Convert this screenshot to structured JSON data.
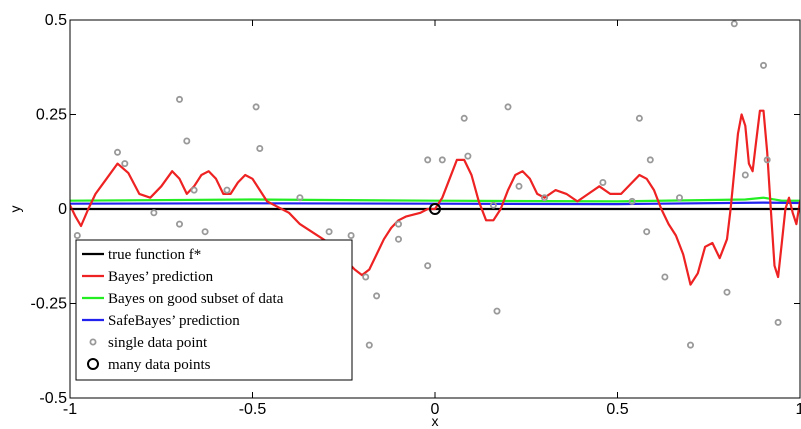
{
  "chart_data": {
    "type": "line",
    "xlabel": "x",
    "ylabel": "y",
    "xlim": [
      -1,
      1
    ],
    "ylim": [
      -0.5,
      0.5
    ],
    "xticks": [
      -1,
      -0.5,
      0,
      0.5,
      1
    ],
    "xtick_labels": [
      "-1",
      "-0.5",
      "0",
      "0.5",
      "1"
    ],
    "yticks": [
      -0.5,
      -0.25,
      0,
      0.25,
      0.5
    ],
    "ytick_labels": [
      "-0.5",
      "-0.25",
      "0",
      "0.25",
      "0.5"
    ],
    "grid": false,
    "legend_position": "bottom-left",
    "colors": {
      "true_function": "#000000",
      "bayes": "#ee2222",
      "bayes_good": "#22ee22",
      "safebayes": "#2222ee",
      "points": "#999999",
      "many_points": "#000000"
    },
    "legend": [
      {
        "label": "true function f*",
        "kind": "line",
        "color": "#000000"
      },
      {
        "label": "Bayes’ prediction",
        "kind": "line",
        "color": "#ee2222"
      },
      {
        "label": "Bayes on good subset of data",
        "kind": "line",
        "color": "#22ee22"
      },
      {
        "label": "SafeBayes’ prediction",
        "kind": "line",
        "color": "#2222ee"
      },
      {
        "label": "single data point",
        "kind": "small-circle",
        "color": "#999999"
      },
      {
        "label": "many data points",
        "kind": "big-circle",
        "color": "#000000"
      }
    ],
    "series": [
      {
        "key": "true_function",
        "x": [
          -1,
          1
        ],
        "y": [
          0,
          0
        ]
      },
      {
        "key": "bayes_good",
        "x": [
          -1,
          -0.5,
          0,
          0.5,
          0.85,
          0.9,
          0.95,
          1
        ],
        "y": [
          0.022,
          0.025,
          0.022,
          0.02,
          0.025,
          0.03,
          0.022,
          0.022
        ]
      },
      {
        "key": "safebayes",
        "x": [
          -1,
          -0.5,
          0,
          0.5,
          0.9,
          1
        ],
        "y": [
          0.014,
          0.015,
          0.014,
          0.013,
          0.017,
          0.016
        ]
      },
      {
        "key": "bayes",
        "x": [
          -1,
          -0.985,
          -0.97,
          -0.95,
          -0.93,
          -0.9,
          -0.87,
          -0.84,
          -0.81,
          -0.78,
          -0.75,
          -0.72,
          -0.7,
          -0.68,
          -0.66,
          -0.64,
          -0.62,
          -0.6,
          -0.58,
          -0.56,
          -0.54,
          -0.52,
          -0.5,
          -0.48,
          -0.46,
          -0.44,
          -0.42,
          -0.4,
          -0.37,
          -0.33,
          -0.29,
          -0.25,
          -0.22,
          -0.2,
          -0.18,
          -0.16,
          -0.14,
          -0.12,
          -0.1,
          -0.08,
          -0.06,
          -0.04,
          -0.02,
          0,
          0.02,
          0.04,
          0.06,
          0.08,
          0.1,
          0.12,
          0.14,
          0.16,
          0.18,
          0.2,
          0.22,
          0.24,
          0.26,
          0.28,
          0.3,
          0.33,
          0.36,
          0.39,
          0.42,
          0.45,
          0.48,
          0.51,
          0.54,
          0.56,
          0.58,
          0.6,
          0.62,
          0.64,
          0.66,
          0.68,
          0.7,
          0.72,
          0.74,
          0.76,
          0.78,
          0.8,
          0.81,
          0.82,
          0.83,
          0.84,
          0.85,
          0.86,
          0.87,
          0.88,
          0.89,
          0.9,
          0.91,
          0.92,
          0.93,
          0.94,
          0.95,
          0.96,
          0.97,
          0.98,
          0.99,
          1
        ],
        "y": [
          0.01,
          -0.02,
          -0.045,
          0.0,
          0.04,
          0.08,
          0.12,
          0.095,
          0.04,
          0.03,
          0.06,
          0.1,
          0.08,
          0.04,
          0.06,
          0.09,
          0.1,
          0.08,
          0.04,
          0.04,
          0.07,
          0.09,
          0.08,
          0.05,
          0.02,
          0.01,
          0.0,
          -0.01,
          -0.04,
          -0.065,
          -0.09,
          -0.13,
          -0.16,
          -0.175,
          -0.16,
          -0.12,
          -0.08,
          -0.05,
          -0.03,
          -0.02,
          -0.015,
          -0.01,
          0.0,
          0.0,
          0.03,
          0.08,
          0.13,
          0.13,
          0.09,
          0.02,
          -0.03,
          -0.03,
          0.0,
          0.05,
          0.09,
          0.1,
          0.08,
          0.04,
          0.03,
          0.05,
          0.04,
          0.02,
          0.04,
          0.06,
          0.04,
          0.04,
          0.07,
          0.09,
          0.08,
          0.05,
          0.0,
          -0.04,
          -0.07,
          -0.12,
          -0.2,
          -0.17,
          -0.1,
          -0.09,
          -0.13,
          -0.08,
          0.0,
          0.1,
          0.2,
          0.25,
          0.22,
          0.12,
          0.1,
          0.18,
          0.26,
          0.26,
          0.15,
          0.0,
          -0.15,
          -0.18,
          -0.09,
          0.0,
          0.03,
          -0.01,
          -0.04,
          0.02
        ]
      }
    ],
    "single_points": {
      "x": [
        -0.98,
        -0.87,
        -0.85,
        -0.77,
        -0.7,
        -0.7,
        -0.68,
        -0.66,
        -0.63,
        -0.57,
        -0.49,
        -0.48,
        -0.37,
        -0.29,
        -0.23,
        -0.19,
        -0.18,
        -0.16,
        -0.1,
        -0.1,
        -0.02,
        -0.02,
        0.02,
        0.08,
        0.09,
        0.16,
        0.17,
        0.2,
        0.23,
        0.3,
        0.46,
        0.54,
        0.56,
        0.58,
        0.59,
        0.63,
        0.67,
        0.7,
        0.8,
        0.82,
        0.85,
        0.9,
        0.91,
        0.94
      ],
      "y": [
        -0.07,
        0.15,
        0.12,
        -0.01,
        0.29,
        -0.04,
        0.18,
        0.05,
        -0.06,
        0.05,
        0.27,
        0.16,
        0.03,
        -0.06,
        -0.07,
        -0.18,
        -0.36,
        -0.23,
        -0.04,
        -0.08,
        -0.15,
        0.13,
        0.13,
        0.24,
        0.14,
        0.01,
        -0.27,
        0.27,
        0.06,
        0.03,
        0.07,
        0.02,
        0.24,
        -0.06,
        0.13,
        -0.18,
        0.03,
        -0.36,
        -0.22,
        0.49,
        0.09,
        0.38,
        0.13,
        -0.3
      ]
    },
    "many_points": {
      "x": [
        0
      ],
      "y": [
        0
      ]
    }
  }
}
